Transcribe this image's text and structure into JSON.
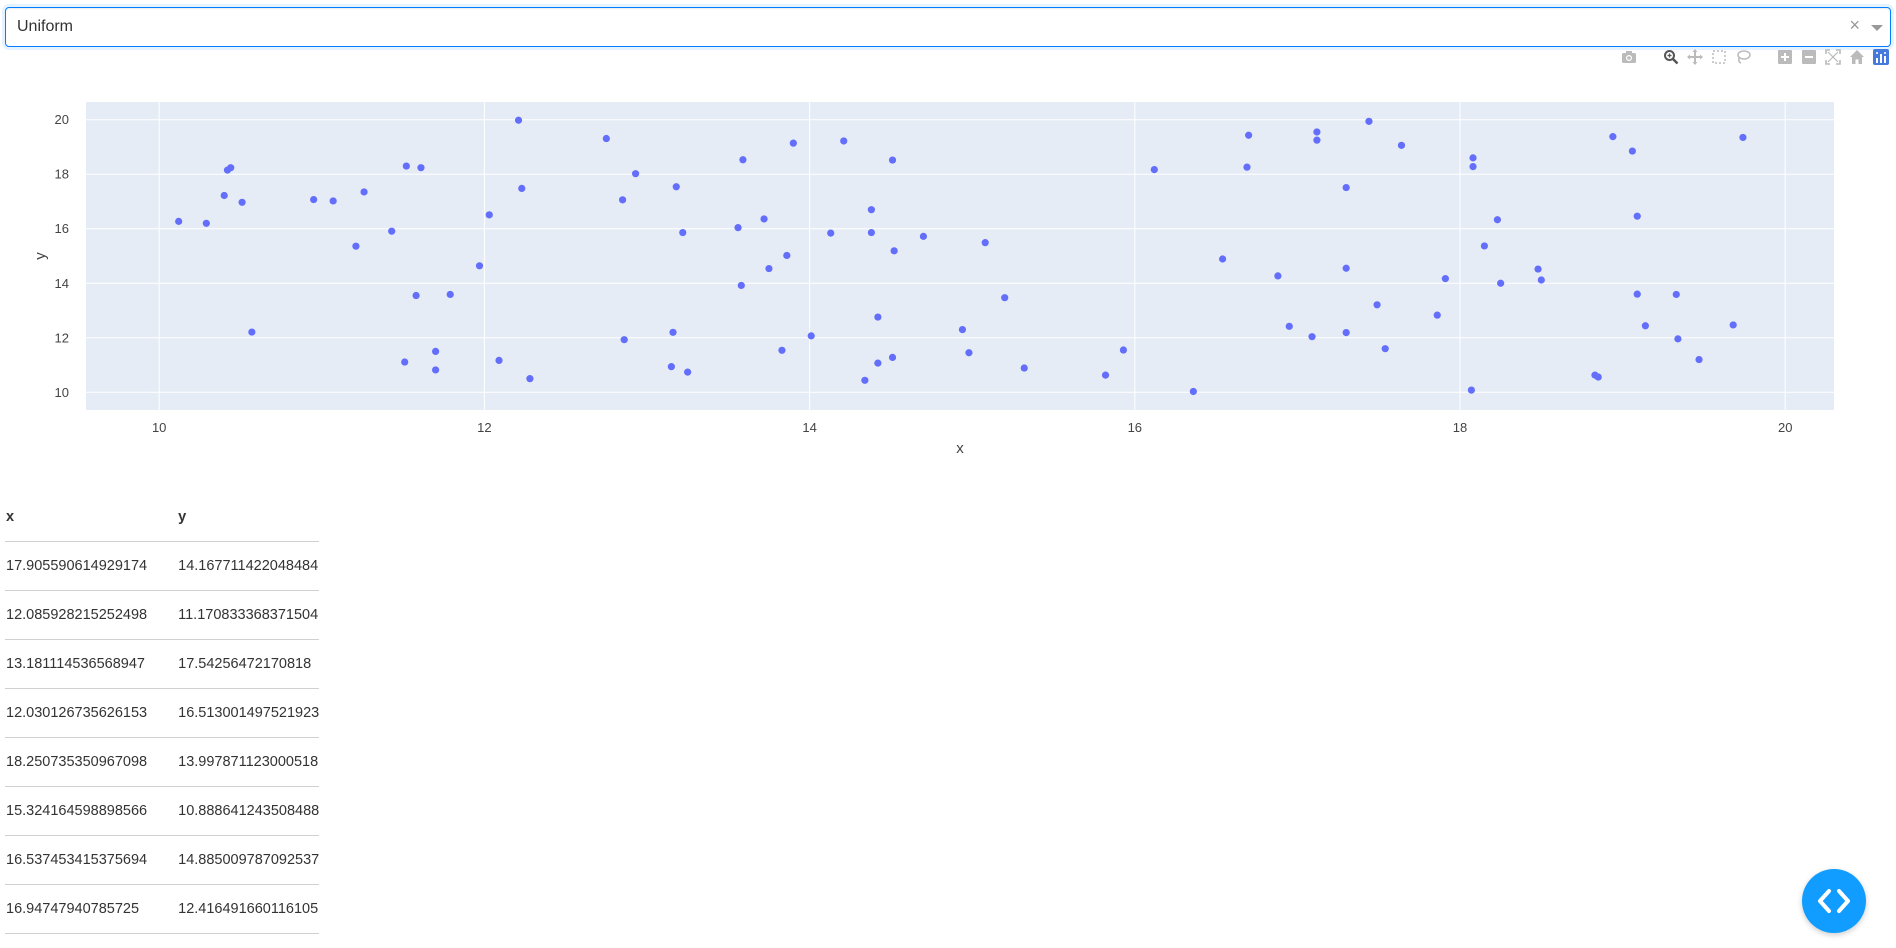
{
  "dropdown": {
    "value": "Uniform",
    "clear_symbol": "×"
  },
  "modebar": {
    "buttons": [
      "camera-icon",
      "zoom-icon",
      "pan-icon",
      "box-select-icon",
      "lasso-icon",
      "zoom-in-icon",
      "zoom-out-icon",
      "autoscale-icon",
      "reset-axes-icon",
      "plotly-logo-icon"
    ]
  },
  "colors": {
    "marker": "#636efa",
    "plot_bg": "#e5ecf6",
    "grid": "#ffffff",
    "fab": "#119dff",
    "dropdown_border": "#007eff"
  },
  "chart_data": {
    "type": "scatter",
    "xlabel": "x",
    "ylabel": "y",
    "xlim": [
      9.55,
      20.3
    ],
    "ylim": [
      9.35,
      20.65
    ],
    "xticks": [
      10,
      12,
      14,
      16,
      18,
      20
    ],
    "yticks": [
      10,
      12,
      14,
      16,
      18,
      20
    ],
    "grid": true,
    "series": [
      {
        "points": [
          [
            10.12,
            16.27
          ],
          [
            10.29,
            16.2
          ],
          [
            10.4,
            17.22
          ],
          [
            10.42,
            18.15
          ],
          [
            10.44,
            18.24
          ],
          [
            10.51,
            16.97
          ],
          [
            10.57,
            12.21
          ],
          [
            10.95,
            17.07
          ],
          [
            11.07,
            17.02
          ],
          [
            11.21,
            15.36
          ],
          [
            11.26,
            17.35
          ],
          [
            11.43,
            15.91
          ],
          [
            11.51,
            11.11
          ],
          [
            11.52,
            18.3
          ],
          [
            11.58,
            13.55
          ],
          [
            11.61,
            18.24
          ],
          [
            11.7,
            11.5
          ],
          [
            11.7,
            10.82
          ],
          [
            11.79,
            13.59
          ],
          [
            11.97,
            14.64
          ],
          [
            12.03,
            16.51
          ],
          [
            12.09,
            11.17
          ],
          [
            12.21,
            19.98
          ],
          [
            12.23,
            17.48
          ],
          [
            12.28,
            10.5
          ],
          [
            12.75,
            19.31
          ],
          [
            12.85,
            17.06
          ],
          [
            12.86,
            11.93
          ],
          [
            12.93,
            18.02
          ],
          [
            13.15,
            10.94
          ],
          [
            13.16,
            12.2
          ],
          [
            13.18,
            17.54
          ],
          [
            13.22,
            15.86
          ],
          [
            13.25,
            10.74
          ],
          [
            13.56,
            16.04
          ],
          [
            13.58,
            13.92
          ],
          [
            13.59,
            18.53
          ],
          [
            13.72,
            16.36
          ],
          [
            13.75,
            14.54
          ],
          [
            13.83,
            11.54
          ],
          [
            13.86,
            15.02
          ],
          [
            13.9,
            19.14
          ],
          [
            14.01,
            12.07
          ],
          [
            14.13,
            15.84
          ],
          [
            14.21,
            19.22
          ],
          [
            14.34,
            10.44
          ],
          [
            14.38,
            15.86
          ],
          [
            14.38,
            16.7
          ],
          [
            14.42,
            11.07
          ],
          [
            14.42,
            12.76
          ],
          [
            14.51,
            11.28
          ],
          [
            14.52,
            15.19
          ],
          [
            14.51,
            18.52
          ],
          [
            14.7,
            15.72
          ],
          [
            14.94,
            12.3
          ],
          [
            14.98,
            11.45
          ],
          [
            15.08,
            15.49
          ],
          [
            15.2,
            13.47
          ],
          [
            15.32,
            10.89
          ],
          [
            15.82,
            10.63
          ],
          [
            15.93,
            11.55
          ],
          [
            16.12,
            18.17
          ],
          [
            16.36,
            10.03
          ],
          [
            16.54,
            14.89
          ],
          [
            16.69,
            18.26
          ],
          [
            16.7,
            19.43
          ],
          [
            16.88,
            14.27
          ],
          [
            16.95,
            12.42
          ],
          [
            17.09,
            12.04
          ],
          [
            17.12,
            19.55
          ],
          [
            17.12,
            19.25
          ],
          [
            17.3,
            17.51
          ],
          [
            17.3,
            14.55
          ],
          [
            17.3,
            12.19
          ],
          [
            17.44,
            19.94
          ],
          [
            17.49,
            13.21
          ],
          [
            17.54,
            11.6
          ],
          [
            17.64,
            19.06
          ],
          [
            17.86,
            12.83
          ],
          [
            17.91,
            14.17
          ],
          [
            18.07,
            10.08
          ],
          [
            18.08,
            18.6
          ],
          [
            18.08,
            18.28
          ],
          [
            18.15,
            15.37
          ],
          [
            18.23,
            16.33
          ],
          [
            18.25,
            14.0
          ],
          [
            18.48,
            14.52
          ],
          [
            18.5,
            14.12
          ],
          [
            18.83,
            10.63
          ],
          [
            18.85,
            10.56
          ],
          [
            18.94,
            19.38
          ],
          [
            19.06,
            18.85
          ],
          [
            19.09,
            16.46
          ],
          [
            19.09,
            13.6
          ],
          [
            19.14,
            12.44
          ],
          [
            19.33,
            13.59
          ],
          [
            19.34,
            11.96
          ],
          [
            19.47,
            11.2
          ],
          [
            19.68,
            12.47
          ],
          [
            19.74,
            19.35
          ]
        ]
      }
    ]
  },
  "table": {
    "headers": {
      "x": "x",
      "y": "y"
    },
    "rows": [
      [
        "17.905590614929174",
        "14.167711422048484"
      ],
      [
        "12.085928215252498",
        "11.170833368371504"
      ],
      [
        "13.181114536568947",
        "17.54256472170818"
      ],
      [
        "12.030126735626153",
        "16.513001497521923"
      ],
      [
        "18.250735350967098",
        "13.997871123000518"
      ],
      [
        "15.324164598898566",
        "10.888641243508488"
      ],
      [
        "16.537453415375694",
        "14.885009787092537"
      ],
      [
        "16.94747940785725",
        "12.416491660116105"
      ]
    ]
  },
  "fab": {
    "icon": "code-icon"
  }
}
